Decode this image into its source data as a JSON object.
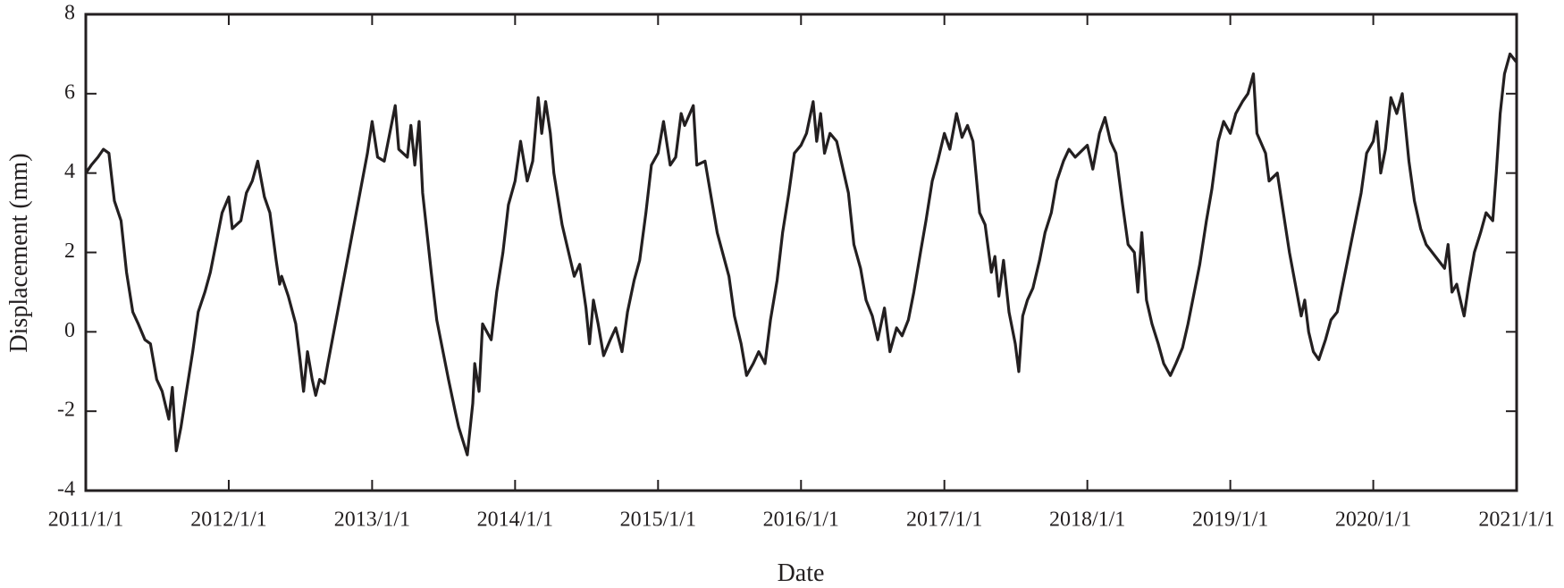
{
  "chart_data": {
    "type": "line",
    "xlabel": "Date",
    "ylabel": "Displacement (mm)",
    "color": "#231f20",
    "xlim": [
      "2011/1/1",
      "2021/1/1"
    ],
    "xticks": [
      "2011/1/1",
      "2012/1/1",
      "2013/1/1",
      "2014/1/1",
      "2015/1/1",
      "2016/1/1",
      "2017/1/1",
      "2018/1/1",
      "2019/1/1",
      "2020/1/1",
      "2021/1/1"
    ],
    "ylim": [
      -4,
      8
    ],
    "yticks": [
      -4,
      -2,
      0,
      2,
      4,
      6,
      8
    ],
    "x": [
      "2011/1/1",
      "2011/1/15",
      "2011/2/1",
      "2011/2/15",
      "2011/3/1",
      "2011/3/15",
      "2011/4/1",
      "2011/4/15",
      "2011/5/1",
      "2011/5/15",
      "2011/6/1",
      "2011/6/15",
      "2011/7/1",
      "2011/7/15",
      "2011/8/1",
      "2011/8/10",
      "2011/8/20",
      "2011/9/1",
      "2011/9/15",
      "2011/10/1",
      "2011/10/15",
      "2011/11/1",
      "2011/11/15",
      "2011/12/1",
      "2011/12/15",
      "2012/1/1",
      "2012/1/10",
      "2012/2/1",
      "2012/2/15",
      "2012/3/1",
      "2012/3/15",
      "2012/4/1",
      "2012/4/15",
      "2012/5/1",
      "2012/5/10",
      "2012/5/15",
      "2012/6/1",
      "2012/6/20",
      "2012/7/1",
      "2012/7/10",
      "2012/7/20",
      "2012/8/1",
      "2012/8/10",
      "2012/8/20",
      "2012/9/1",
      "2012/9/10",
      "2012/12/20",
      "2013/1/1",
      "2013/1/15",
      "2013/2/1",
      "2013/2/15",
      "2013/3/1",
      "2013/3/10",
      "2013/4/1",
      "2013/4/10",
      "2013/4/20",
      "2013/5/1",
      "2013/5/10",
      "2013/6/1",
      "2013/6/15",
      "2013/7/1",
      "2013/7/15",
      "2013/8/1",
      "2013/8/10",
      "2013/9/1",
      "2013/9/15",
      "2013/9/20",
      "2013/10/1",
      "2013/10/10",
      "2013/11/1",
      "2013/11/15",
      "2013/12/1",
      "2013/12/15",
      "2014/1/1",
      "2014/1/15",
      "2014/2/1",
      "2014/2/15",
      "2014/3/1",
      "2014/3/10",
      "2014/3/20",
      "2014/4/1",
      "2014/4/10",
      "2014/5/1",
      "2014/6/1",
      "2014/6/15",
      "2014/7/1",
      "2014/7/10",
      "2014/7/20",
      "2014/8/1",
      "2014/8/15",
      "2014/9/1",
      "2014/9/15",
      "2014/10/1",
      "2014/10/15",
      "2014/11/1",
      "2014/11/15",
      "2014/12/1",
      "2014/12/15",
      "2015/1/1",
      "2015/1/15",
      "2015/2/1",
      "2015/2/15",
      "2015/3/1",
      "2015/3/10",
      "2015/4/1",
      "2015/4/10",
      "2015/5/1",
      "2015/6/1",
      "2015/7/1",
      "2015/7/15",
      "2015/8/1",
      "2015/8/15",
      "2015/9/1",
      "2015/9/15",
      "2015/10/1",
      "2015/10/15",
      "2015/11/1",
      "2015/11/15",
      "2015/12/1",
      "2015/12/15",
      "2016/1/1",
      "2016/1/15",
      "2016/2/1",
      "2016/2/10",
      "2016/2/20",
      "2016/3/1",
      "2016/3/15",
      "2016/4/1",
      "2016/5/1",
      "2016/5/15",
      "2016/6/1",
      "2016/6/15",
      "2016/7/1",
      "2016/7/15",
      "2016/8/1",
      "2016/8/15",
      "2016/9/1",
      "2016/9/15",
      "2016/10/1",
      "2016/10/15",
      "2016/11/1",
      "2016/11/15",
      "2016/12/1",
      "2016/12/15",
      "2017/1/1",
      "2017/1/15",
      "2017/2/1",
      "2017/2/15",
      "2017/3/1",
      "2017/3/15",
      "2017/4/1",
      "2017/4/15",
      "2017/5/1",
      "2017/5/10",
      "2017/5/20",
      "2017/6/1",
      "2017/6/15",
      "2017/7/1",
      "2017/7/10",
      "2017/7/20",
      "2017/8/1",
      "2017/8/15",
      "2017/9/1",
      "2017/9/15",
      "2017/10/1",
      "2017/10/15",
      "2017/11/1",
      "2017/11/15",
      "2017/12/1",
      "2018/1/1",
      "2018/1/15",
      "2018/2/1",
      "2018/2/15",
      "2018/3/1",
      "2018/3/15",
      "2018/4/1",
      "2018/4/15",
      "2018/5/1",
      "2018/5/10",
      "2018/5/20",
      "2018/6/1",
      "2018/6/15",
      "2018/7/1",
      "2018/7/15",
      "2018/8/1",
      "2018/8/15",
      "2018/9/1",
      "2018/9/15",
      "2018/10/1",
      "2018/10/15",
      "2018/11/1",
      "2018/11/15",
      "2018/12/1",
      "2018/12/15",
      "2019/1/1",
      "2019/1/15",
      "2019/2/1",
      "2019/2/15",
      "2019/3/1",
      "2019/3/10",
      "2019/4/1",
      "2019/4/10",
      "2019/5/1",
      "2019/6/1",
      "2019/7/1",
      "2019/7/10",
      "2019/7/20",
      "2019/8/1",
      "2019/8/15",
      "2019/9/1",
      "2019/9/15",
      "2019/10/1",
      "2019/12/1",
      "2019/12/15",
      "2020/1/1",
      "2020/1/10",
      "2020/1/20",
      "2020/2/1",
      "2020/2/15",
      "2020/3/1",
      "2020/3/15",
      "2020/4/1",
      "2020/4/15",
      "2020/5/1",
      "2020/5/15",
      "2020/7/1",
      "2020/7/10",
      "2020/7/20",
      "2020/8/1",
      "2020/8/15",
      "2020/8/20",
      "2020/9/1",
      "2020/9/15",
      "2020/10/1",
      "2020/10/15",
      "2020/11/1",
      "2020/11/10",
      "2020/11/20",
      "2020/12/1",
      "2020/12/15",
      "2020/12/31"
    ],
    "values": [
      4.0,
      4.2,
      4.4,
      4.6,
      4.5,
      3.3,
      2.8,
      1.5,
      0.5,
      0.2,
      -0.2,
      -0.3,
      -1.2,
      -1.5,
      -2.2,
      -1.4,
      -3.0,
      -2.4,
      -1.5,
      -0.5,
      0.5,
      1.0,
      1.5,
      2.3,
      3.0,
      3.4,
      2.6,
      2.8,
      3.5,
      3.8,
      4.3,
      3.4,
      3.0,
      1.8,
      1.2,
      1.4,
      0.9,
      0.2,
      -0.7,
      -1.5,
      -0.5,
      -1.2,
      -1.6,
      -1.2,
      -1.3,
      -0.8,
      4.5,
      5.3,
      4.4,
      4.3,
      5.0,
      5.7,
      4.6,
      4.4,
      5.2,
      4.2,
      5.3,
      3.5,
      1.5,
      0.3,
      -0.5,
      -1.2,
      -2.0,
      -2.4,
      -3.1,
      -1.8,
      -0.8,
      -1.5,
      0.2,
      -0.2,
      1.0,
      2.0,
      3.2,
      3.8,
      4.8,
      3.8,
      4.3,
      5.9,
      5.0,
      5.8,
      5.0,
      4.0,
      2.7,
      1.4,
      1.7,
      0.6,
      -0.3,
      0.8,
      0.2,
      -0.6,
      -0.2,
      0.1,
      -0.5,
      0.5,
      1.3,
      1.8,
      3.0,
      4.2,
      4.5,
      5.3,
      4.2,
      4.4,
      5.5,
      5.2,
      5.7,
      4.2,
      4.3,
      2.5,
      1.4,
      0.4,
      -0.3,
      -1.1,
      -0.8,
      -0.5,
      -0.8,
      0.3,
      1.3,
      2.5,
      3.5,
      4.5,
      4.7,
      5.0,
      5.8,
      4.8,
      5.5,
      4.5,
      5.0,
      4.8,
      3.5,
      2.2,
      1.6,
      0.8,
      0.4,
      -0.2,
      0.6,
      -0.5,
      0.1,
      -0.1,
      0.3,
      1.0,
      2.0,
      2.8,
      3.8,
      4.3,
      5.0,
      4.6,
      5.5,
      4.9,
      5.2,
      4.8,
      3.0,
      2.7,
      1.5,
      1.9,
      0.9,
      1.8,
      0.5,
      -0.3,
      -1.0,
      0.4,
      0.8,
      1.1,
      1.8,
      2.5,
      3.0,
      3.8,
      4.3,
      4.6,
      4.4,
      4.7,
      4.1,
      5.0,
      5.4,
      4.8,
      4.5,
      3.2,
      2.2,
      2.0,
      1.0,
      2.5,
      0.8,
      0.2,
      -0.3,
      -0.8,
      -1.1,
      -0.8,
      -0.4,
      0.2,
      1.0,
      1.7,
      2.8,
      3.6,
      4.8,
      5.3,
      5.0,
      5.5,
      5.8,
      6.0,
      6.5,
      5.0,
      4.5,
      3.8,
      4.0,
      2.0,
      0.4,
      0.8,
      0.0,
      -0.5,
      -0.7,
      -0.2,
      0.3,
      0.5,
      3.5,
      4.5,
      4.8,
      5.3,
      4.0,
      4.6,
      5.9,
      5.5,
      6.0,
      4.3,
      3.3,
      2.6,
      2.2,
      1.6,
      2.2,
      1.0,
      1.2,
      0.6,
      0.4,
      1.2,
      2.0,
      2.5,
      3.0,
      2.8,
      4.0,
      5.5,
      6.5,
      7.0,
      6.8
    ]
  }
}
